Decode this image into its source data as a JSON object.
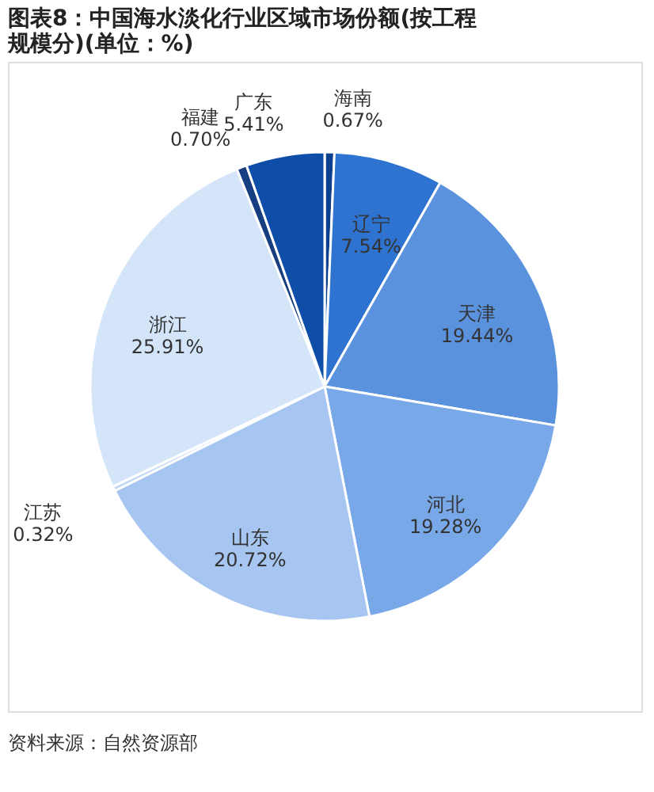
{
  "chart_data": {
    "type": "pie",
    "title": "图表8：中国海水淡化行业区域市场份额(按工程规模分)(单位：%)",
    "categories": [
      "海南",
      "辽宁",
      "天津",
      "河北",
      "山东",
      "江苏",
      "浙江",
      "福建",
      "广东"
    ],
    "values": [
      0.67,
      7.54,
      19.44,
      19.28,
      20.72,
      0.32,
      25.91,
      0.7,
      5.41
    ],
    "value_labels": [
      "0.67%",
      "7.54%",
      "19.44%",
      "19.28%",
      "20.72%",
      "0.32%",
      "25.91%",
      "0.70%",
      "5.41%"
    ],
    "colors": [
      "#0d3f8f",
      "#2f73d1",
      "#5a92de",
      "#78a8e8",
      "#a6c5f0",
      "#c0d6f4",
      "#d5e5f9",
      "#173e80",
      "#0f4ea8"
    ],
    "legend": false,
    "annotations": [
      "资料来源：自然资源部"
    ]
  }
}
